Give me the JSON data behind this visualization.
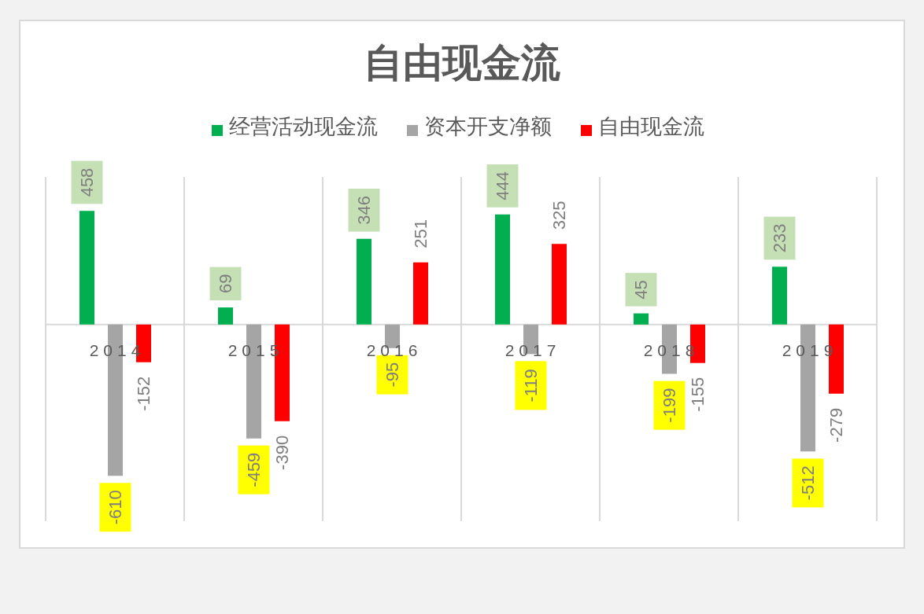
{
  "chart_data": {
    "type": "bar",
    "title": "自由现金流",
    "categories": [
      "2014",
      "2015",
      "2016",
      "2017",
      "2018",
      "2019"
    ],
    "series": [
      {
        "name": "经营活动现金流",
        "color": "#00b050",
        "values": [
          458,
          69,
          346,
          444,
          45,
          233
        ]
      },
      {
        "name": "资本开支净额",
        "color": "#a5a5a5",
        "values": [
          -610,
          -459,
          -95,
          -119,
          -199,
          -512
        ]
      },
      {
        "name": "自由现金流",
        "color": "#ff0000",
        "values": [
          -152,
          -390,
          251,
          325,
          -155,
          -279
        ]
      }
    ],
    "data_labels": true,
    "legend": "top",
    "grid": "x",
    "tick_labels": "x"
  }
}
